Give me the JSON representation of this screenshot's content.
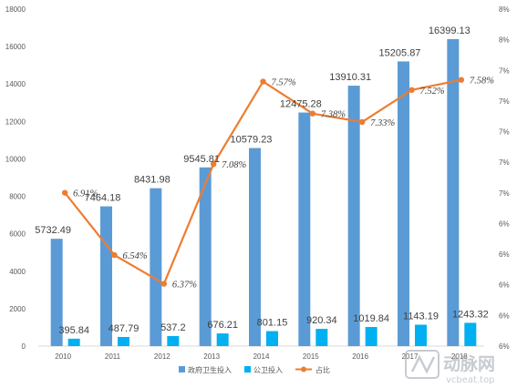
{
  "chart_data": {
    "type": "bar",
    "categories": [
      "2010",
      "2011",
      "2012",
      "2013",
      "2014",
      "2015",
      "2016",
      "2017",
      "2018"
    ],
    "series": [
      {
        "name": "政府卫生投入",
        "kind": "bar",
        "color": "#5B9BD5",
        "axis": "left",
        "values": [
          5732.49,
          7464.18,
          8431.98,
          9545.81,
          10579.23,
          12475.28,
          13910.31,
          15205.87,
          16399.13
        ],
        "labels": [
          "5732.49",
          "7464.18",
          "8431.98",
          "9545.81",
          "10579.23",
          "12475.28",
          "13910.31",
          "15205.87",
          "16399.13"
        ]
      },
      {
        "name": "公卫投入",
        "kind": "bar",
        "color": "#00B0F0",
        "axis": "left",
        "values": [
          395.84,
          487.79,
          537.2,
          676.21,
          801.15,
          920.34,
          1019.84,
          1143.19,
          1243.32
        ],
        "labels": [
          "395.84",
          "487.79",
          "537.2",
          "676.21",
          "801.15",
          "920.34",
          "1019.84",
          "1143.19",
          "1243.32"
        ]
      },
      {
        "name": "占比",
        "kind": "line",
        "color": "#ED7D31",
        "axis": "right",
        "values": [
          6.91,
          6.54,
          6.37,
          7.08,
          7.57,
          7.38,
          7.33,
          7.52,
          7.58
        ],
        "labels": [
          "6.91%",
          "6.54%",
          "6.37%",
          "7.08%",
          "7.57%",
          "7.38%",
          "7.33%",
          "7.52%",
          "7.58%"
        ]
      }
    ],
    "y_left": {
      "min": 0,
      "max": 18000,
      "ticks": [
        "0",
        "2000",
        "4000",
        "6000",
        "8000",
        "10000",
        "12000",
        "14000",
        "16000",
        "18000"
      ]
    },
    "y_right": {
      "min": 6.0,
      "max": 8.0,
      "ticks": [
        "6%",
        "6%",
        "6%",
        "6%",
        "6%",
        "7%",
        "7%",
        "7%",
        "7%",
        "7%",
        "8%",
        "8%"
      ]
    },
    "grid": false,
    "legend": "bottom"
  },
  "watermark": {
    "logo_text": "动脉网",
    "url": "vcbeat.top"
  }
}
